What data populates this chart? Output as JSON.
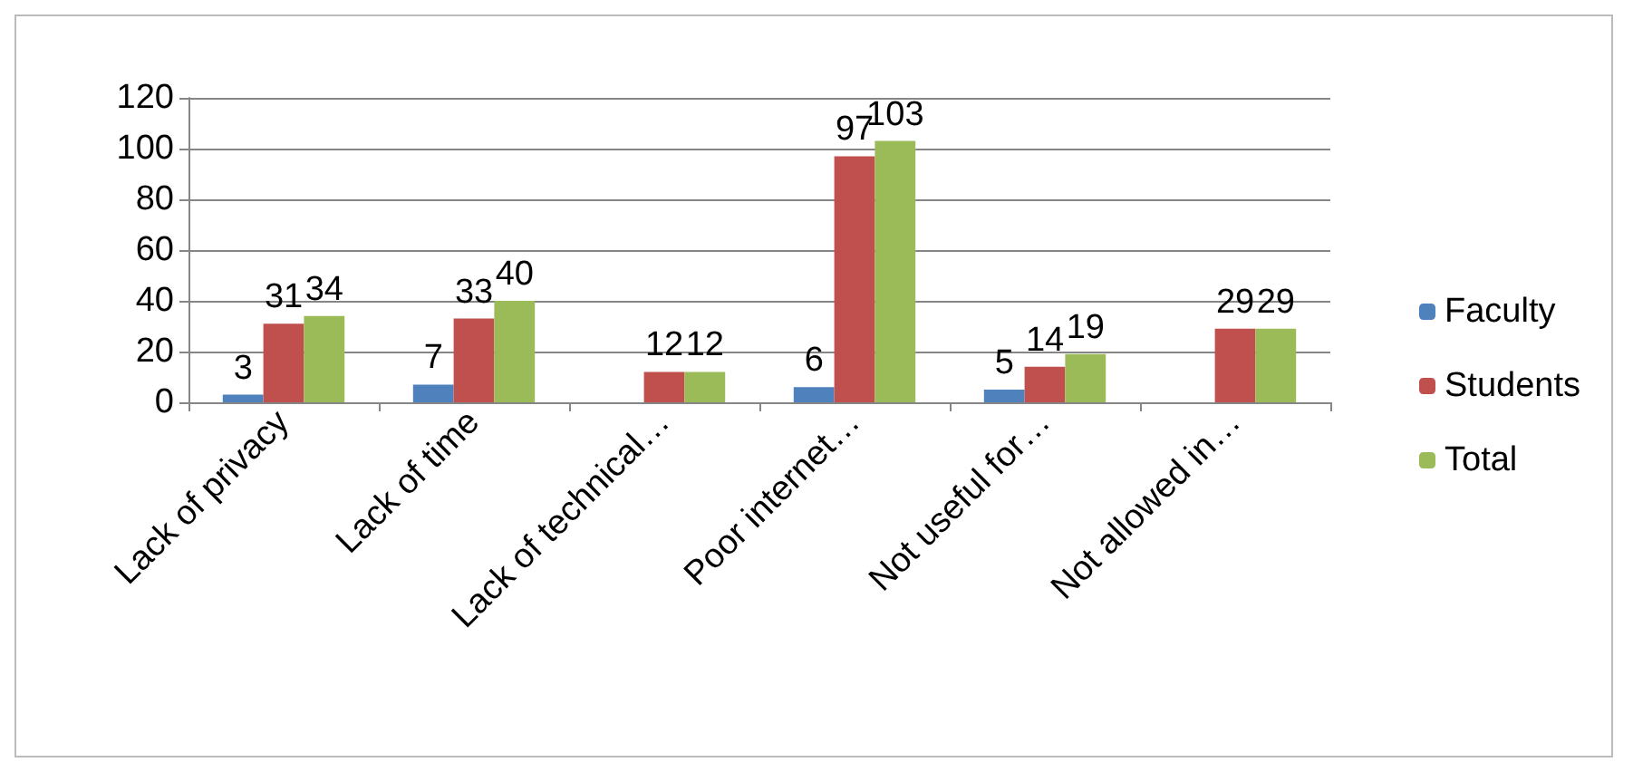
{
  "chart_data": {
    "type": "bar",
    "categories": [
      "Lack of privacy",
      "Lack of time",
      "Lack of technical…",
      "Poor internet…",
      "Not useful for…",
      "Not allowed in…"
    ],
    "series": [
      {
        "name": "Faculty",
        "color": "#4f81bd",
        "values": [
          3,
          7,
          null,
          6,
          5,
          null
        ]
      },
      {
        "name": "Students",
        "color": "#c0504d",
        "values": [
          31,
          33,
          12,
          97,
          14,
          29
        ]
      },
      {
        "name": "Total",
        "color": "#9bbb59",
        "values": [
          34,
          40,
          12,
          103,
          19,
          29
        ]
      }
    ],
    "ylim": [
      0,
      120
    ],
    "yticks": [
      0,
      20,
      40,
      60,
      80,
      100,
      120
    ],
    "grid": "y",
    "legend": "right",
    "data_labels": true
  }
}
